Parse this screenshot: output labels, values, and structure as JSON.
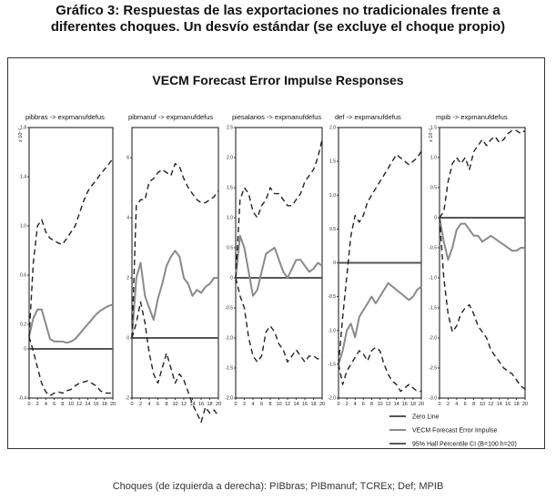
{
  "heading": {
    "line1": "Gráfico 3: Respuestas de las exportaciones no tradicionales frente a",
    "line2": "diferentes choques. Un desvío estándar (se excluye el choque propio)"
  },
  "panel_title": "VECM Forecast Error Impulse Responses",
  "caption": "Choques (de izquierda a derecha): PIBbras; PIBmanuf; TCREx; Def; MPIB",
  "legend": {
    "zero": "Zero Line",
    "irf": "VECM Forecast Error Impulse",
    "ci": "95% Hall Percentile CI (B=100 h=20)"
  },
  "colors": {
    "zero": "#555555",
    "irf": "#8a8a8a",
    "ci": "#222222"
  },
  "chart_data": [
    {
      "type": "line",
      "title": "pibbras -> expmanufdefus",
      "scale_note": "x 10⁻²",
      "x": [
        0,
        1,
        2,
        3,
        4,
        5,
        6,
        7,
        8,
        9,
        10,
        11,
        12,
        13,
        14,
        15,
        16,
        17,
        18,
        19,
        20
      ],
      "xticks": [
        0,
        2,
        4,
        6,
        8,
        10,
        12,
        14,
        16,
        18,
        20
      ],
      "ylim": [
        -0.4,
        1.8
      ],
      "yticks": [
        -0.4,
        0,
        0.2,
        0.6,
        1.0,
        1.4,
        1.8
      ],
      "ytick_labels": [
        "-0.4",
        "0",
        "0.2",
        "0.6",
        "1.0",
        "1.4",
        "1.8"
      ],
      "series": [
        {
          "role": "irf",
          "values": [
            0.1,
            0.25,
            0.32,
            0.32,
            0.2,
            0.08,
            0.06,
            0.06,
            0.06,
            0.05,
            0.06,
            0.08,
            0.12,
            0.16,
            0.2,
            0.24,
            0.28,
            0.31,
            0.33,
            0.35,
            0.36
          ]
        },
        {
          "role": "ci_upper",
          "values": [
            0.1,
            0.7,
            1.0,
            1.05,
            0.95,
            0.9,
            0.88,
            0.86,
            0.85,
            0.9,
            0.95,
            1.0,
            1.1,
            1.2,
            1.28,
            1.33,
            1.37,
            1.42,
            1.46,
            1.5,
            1.55
          ]
        },
        {
          "role": "ci_lower",
          "values": [
            0.1,
            -0.02,
            -0.15,
            -0.28,
            -0.35,
            -0.38,
            -0.36,
            -0.35,
            -0.36,
            -0.34,
            -0.33,
            -0.3,
            -0.28,
            -0.27,
            -0.26,
            -0.28,
            -0.3,
            -0.34,
            -0.36,
            -0.36,
            -0.36
          ]
        }
      ]
    },
    {
      "type": "line",
      "title": "pibmanuf -> expmanufdefus",
      "scale_note": "",
      "x": [
        0,
        1,
        2,
        3,
        4,
        5,
        6,
        7,
        8,
        9,
        10,
        11,
        12,
        13,
        14,
        15,
        16,
        17,
        18,
        19,
        20
      ],
      "xticks": [
        0,
        2,
        4,
        6,
        8,
        10,
        12,
        14,
        16,
        18,
        20
      ],
      "ylim": [
        -2,
        7
      ],
      "yticks": [
        -2,
        0,
        2,
        4,
        6
      ],
      "ytick_labels": [
        "-2",
        "0",
        "2",
        "4",
        "6"
      ],
      "series": [
        {
          "role": "irf",
          "values": [
            0,
            2.0,
            2.5,
            1.4,
            1.0,
            0.6,
            1.3,
            1.8,
            2.4,
            2.7,
            2.9,
            2.7,
            2.0,
            1.8,
            1.4,
            1.6,
            1.5,
            1.7,
            1.8,
            2.0,
            2.0
          ]
        },
        {
          "role": "ci_upper",
          "values": [
            0,
            4.4,
            4.6,
            4.6,
            5.2,
            5.3,
            5.5,
            5.6,
            5.5,
            5.4,
            5.8,
            5.7,
            5.3,
            5.0,
            4.8,
            4.6,
            4.5,
            4.5,
            4.6,
            4.7,
            4.9
          ]
        },
        {
          "role": "ci_lower",
          "values": [
            0,
            0.5,
            1.2,
            0.5,
            -0.5,
            -1.2,
            -1.5,
            -1.0,
            -0.5,
            -1.0,
            -1.5,
            -1.2,
            -1.4,
            -1.8,
            -2.2,
            -2.5,
            -2.8,
            -2.3,
            -2.5,
            -2.4,
            -2.6
          ]
        }
      ]
    },
    {
      "type": "line",
      "title": "piesalarios -> expmanufdefus",
      "scale_note": "",
      "x": [
        0,
        1,
        2,
        3,
        4,
        5,
        6,
        7,
        8,
        9,
        10,
        11,
        12,
        13,
        14,
        15,
        16,
        17,
        18,
        19,
        20
      ],
      "xticks": [
        0,
        2,
        4,
        6,
        8,
        10,
        12,
        14,
        16,
        18,
        20
      ],
      "ylim": [
        -2.0,
        2.5
      ],
      "yticks": [
        -2.0,
        -1.5,
        -1.0,
        -0.5,
        0,
        0.5,
        1.0,
        1.5,
        2.0,
        2.5
      ],
      "ytick_labels": [
        "-2.0",
        "-1.5",
        "-1.0",
        "-0.5",
        "0",
        "0.5",
        "1.0",
        "1.5",
        "2.0",
        "2.5"
      ],
      "series": [
        {
          "role": "irf",
          "values": [
            0,
            0.7,
            0.5,
            0.1,
            -0.3,
            -0.2,
            0.1,
            0.4,
            0.45,
            0.5,
            0.3,
            0.1,
            0.0,
            0.15,
            0.3,
            0.3,
            0.2,
            0.1,
            0.15,
            0.25,
            0.2
          ]
        },
        {
          "role": "ci_upper",
          "values": [
            0,
            1.3,
            1.5,
            1.4,
            1.1,
            1.0,
            1.2,
            1.3,
            1.5,
            1.4,
            1.4,
            1.3,
            1.2,
            1.2,
            1.3,
            1.4,
            1.6,
            1.7,
            1.8,
            2.0,
            2.3
          ]
        },
        {
          "role": "ci_lower",
          "values": [
            0,
            -0.3,
            -0.5,
            -1.0,
            -1.3,
            -1.4,
            -1.3,
            -0.9,
            -0.8,
            -0.9,
            -1.1,
            -1.2,
            -1.4,
            -1.3,
            -1.2,
            -1.3,
            -1.4,
            -1.3,
            -1.3,
            -1.35,
            -1.3
          ]
        }
      ]
    },
    {
      "type": "line",
      "title": "def -> expmanufdefus",
      "scale_note": "",
      "x": [
        0,
        1,
        2,
        3,
        4,
        5,
        6,
        7,
        8,
        9,
        10,
        11,
        12,
        13,
        14,
        15,
        16,
        17,
        18,
        19,
        20
      ],
      "xticks": [
        0,
        2,
        4,
        6,
        8,
        10,
        12,
        14,
        16,
        18,
        20
      ],
      "ylim": [
        -2.0,
        2.0
      ],
      "yticks": [
        -2.0,
        -1.5,
        -1.0,
        -0.5,
        0,
        0.5,
        1.0,
        1.5,
        2.0
      ],
      "ytick_labels": [
        "-2.0",
        "-1.5",
        "-1.0",
        "-0.5",
        "0",
        "0.5",
        "1.0",
        "1.5",
        "2.0"
      ],
      "series": [
        {
          "role": "irf",
          "values": [
            -1.5,
            -1.3,
            -1.0,
            -0.9,
            -1.1,
            -0.8,
            -0.7,
            -0.6,
            -0.5,
            -0.6,
            -0.5,
            -0.4,
            -0.3,
            -0.35,
            -0.4,
            -0.45,
            -0.5,
            -0.55,
            -0.5,
            -0.4,
            -0.35
          ]
        },
        {
          "role": "ci_upper",
          "values": [
            -1.5,
            -0.8,
            -0.2,
            0.4,
            0.7,
            0.6,
            0.7,
            0.9,
            1.0,
            1.1,
            1.2,
            1.3,
            1.4,
            1.5,
            1.6,
            1.55,
            1.5,
            1.45,
            1.5,
            1.55,
            1.65
          ]
        },
        {
          "role": "ci_lower",
          "values": [
            -1.5,
            -1.8,
            -1.6,
            -1.5,
            -1.4,
            -1.3,
            -1.35,
            -1.45,
            -1.3,
            -1.25,
            -1.3,
            -1.5,
            -1.65,
            -1.75,
            -1.8,
            -1.9,
            -1.85,
            -1.8,
            -1.85,
            -1.9,
            -1.9
          ]
        }
      ]
    },
    {
      "type": "line",
      "title": "mpib -> expmanufdefus",
      "scale_note": "x 10⁻²",
      "x": [
        0,
        1,
        2,
        3,
        4,
        5,
        6,
        7,
        8,
        9,
        10,
        11,
        12,
        13,
        14,
        15,
        16,
        17,
        18,
        19,
        20
      ],
      "xticks": [
        0,
        2,
        4,
        6,
        8,
        10,
        12,
        14,
        16,
        18,
        20
      ],
      "ylim": [
        -3.0,
        1.5
      ],
      "yticks": [
        -3.0,
        -2.5,
        -2.0,
        -1.5,
        -1.0,
        -0.5,
        0,
        0.5,
        1.0,
        1.5
      ],
      "ytick_labels": [
        "-3.0",
        "-2.5",
        "-2.0",
        "-1.5",
        "-1.0",
        "-0.5",
        "0",
        "0.5",
        "1.0",
        "1.5"
      ],
      "series": [
        {
          "role": "irf",
          "values": [
            0,
            -0.4,
            -0.7,
            -0.5,
            -0.2,
            -0.1,
            -0.1,
            -0.2,
            -0.3,
            -0.3,
            -0.4,
            -0.35,
            -0.3,
            -0.35,
            -0.4,
            -0.45,
            -0.5,
            -0.55,
            -0.55,
            -0.5,
            -0.5
          ]
        },
        {
          "role": "ci_upper",
          "values": [
            0,
            0.1,
            0.6,
            0.9,
            1.0,
            0.9,
            1.0,
            0.8,
            1.1,
            1.2,
            1.3,
            1.2,
            1.3,
            1.35,
            1.25,
            1.3,
            1.4,
            1.45,
            1.45,
            1.4,
            1.45
          ]
        },
        {
          "role": "ci_lower",
          "values": [
            0,
            -1.0,
            -1.6,
            -1.9,
            -1.8,
            -1.6,
            -1.5,
            -1.45,
            -1.6,
            -1.8,
            -1.9,
            -2.0,
            -2.2,
            -2.3,
            -2.4,
            -2.5,
            -2.55,
            -2.6,
            -2.7,
            -2.8,
            -2.85
          ]
        }
      ]
    }
  ]
}
